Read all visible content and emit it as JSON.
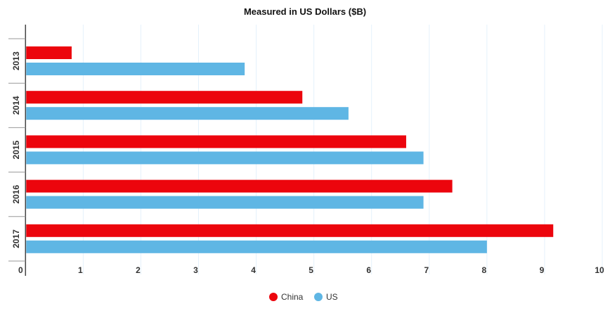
{
  "chart_data": {
    "type": "bar",
    "orientation": "horizontal",
    "title": "Measured in US Dollars ($B)",
    "categories": [
      "2013",
      "2014",
      "2015",
      "2016",
      "2017"
    ],
    "series": [
      {
        "name": "China",
        "color": "#ec050d",
        "values": [
          0.8,
          4.8,
          6.6,
          7.4,
          9.15
        ]
      },
      {
        "name": "US",
        "color": "#5fb6e4",
        "values": [
          3.8,
          5.6,
          6.9,
          6.9,
          8.0
        ]
      }
    ],
    "xlim": [
      0,
      10
    ],
    "xticks": [
      "0",
      "1",
      "2",
      "3",
      "4",
      "5",
      "6",
      "7",
      "8",
      "9",
      "10"
    ],
    "grid": true,
    "legend": "bottom"
  }
}
